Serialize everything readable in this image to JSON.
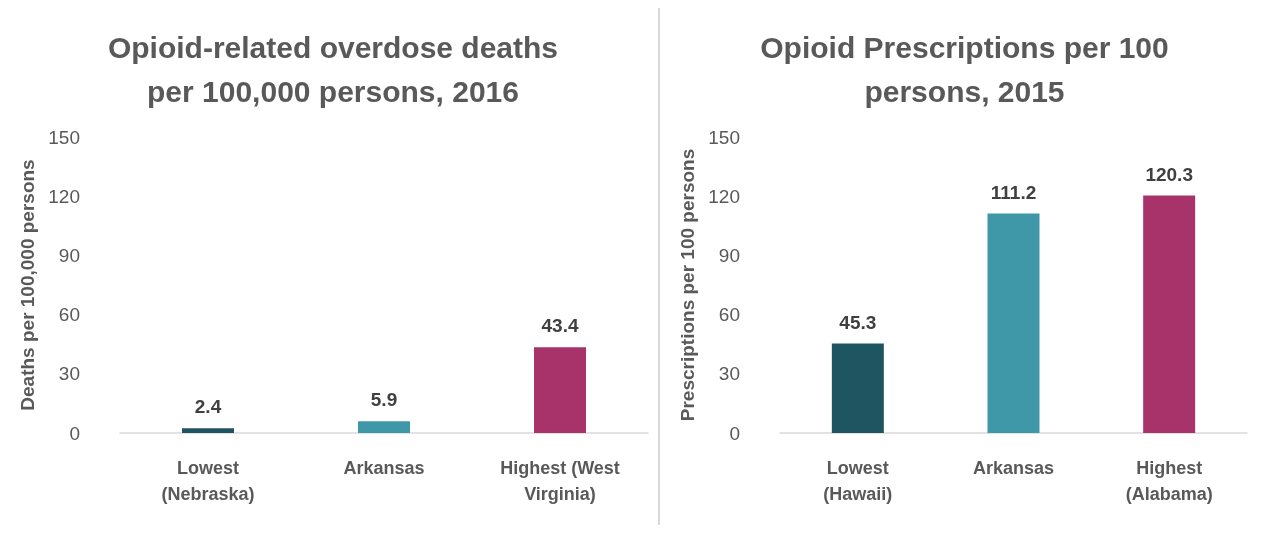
{
  "chart_data": [
    {
      "type": "bar",
      "title": "Opioid-related overdose deaths\nper 100,000 persons, 2016",
      "ylabel": "Deaths per 100,000 persons",
      "categories": [
        "Lowest\n(Nebraska)",
        "Arkansas",
        "Highest (West\nVirginia)"
      ],
      "values": [
        2.4,
        5.9,
        43.4
      ],
      "colors": [
        "#1f5560",
        "#3e98a8",
        "#a8336b"
      ],
      "ylim": [
        0,
        150
      ],
      "yticks": [
        0,
        30,
        60,
        90,
        120,
        150
      ],
      "data_labels": true
    },
    {
      "type": "bar",
      "title": "Opioid Prescriptions per 100\npersons, 2015",
      "ylabel": "Prescriptions per 100 persons",
      "categories": [
        "Lowest\n(Hawaii)",
        "Arkansas",
        "Highest\n(Alabama)"
      ],
      "values": [
        45.3,
        111.2,
        120.3
      ],
      "colors": [
        "#1f5560",
        "#3e98a8",
        "#a8336b"
      ],
      "ylim": [
        0,
        150
      ],
      "yticks": [
        0,
        30,
        60,
        90,
        120,
        150
      ],
      "data_labels": true
    }
  ]
}
